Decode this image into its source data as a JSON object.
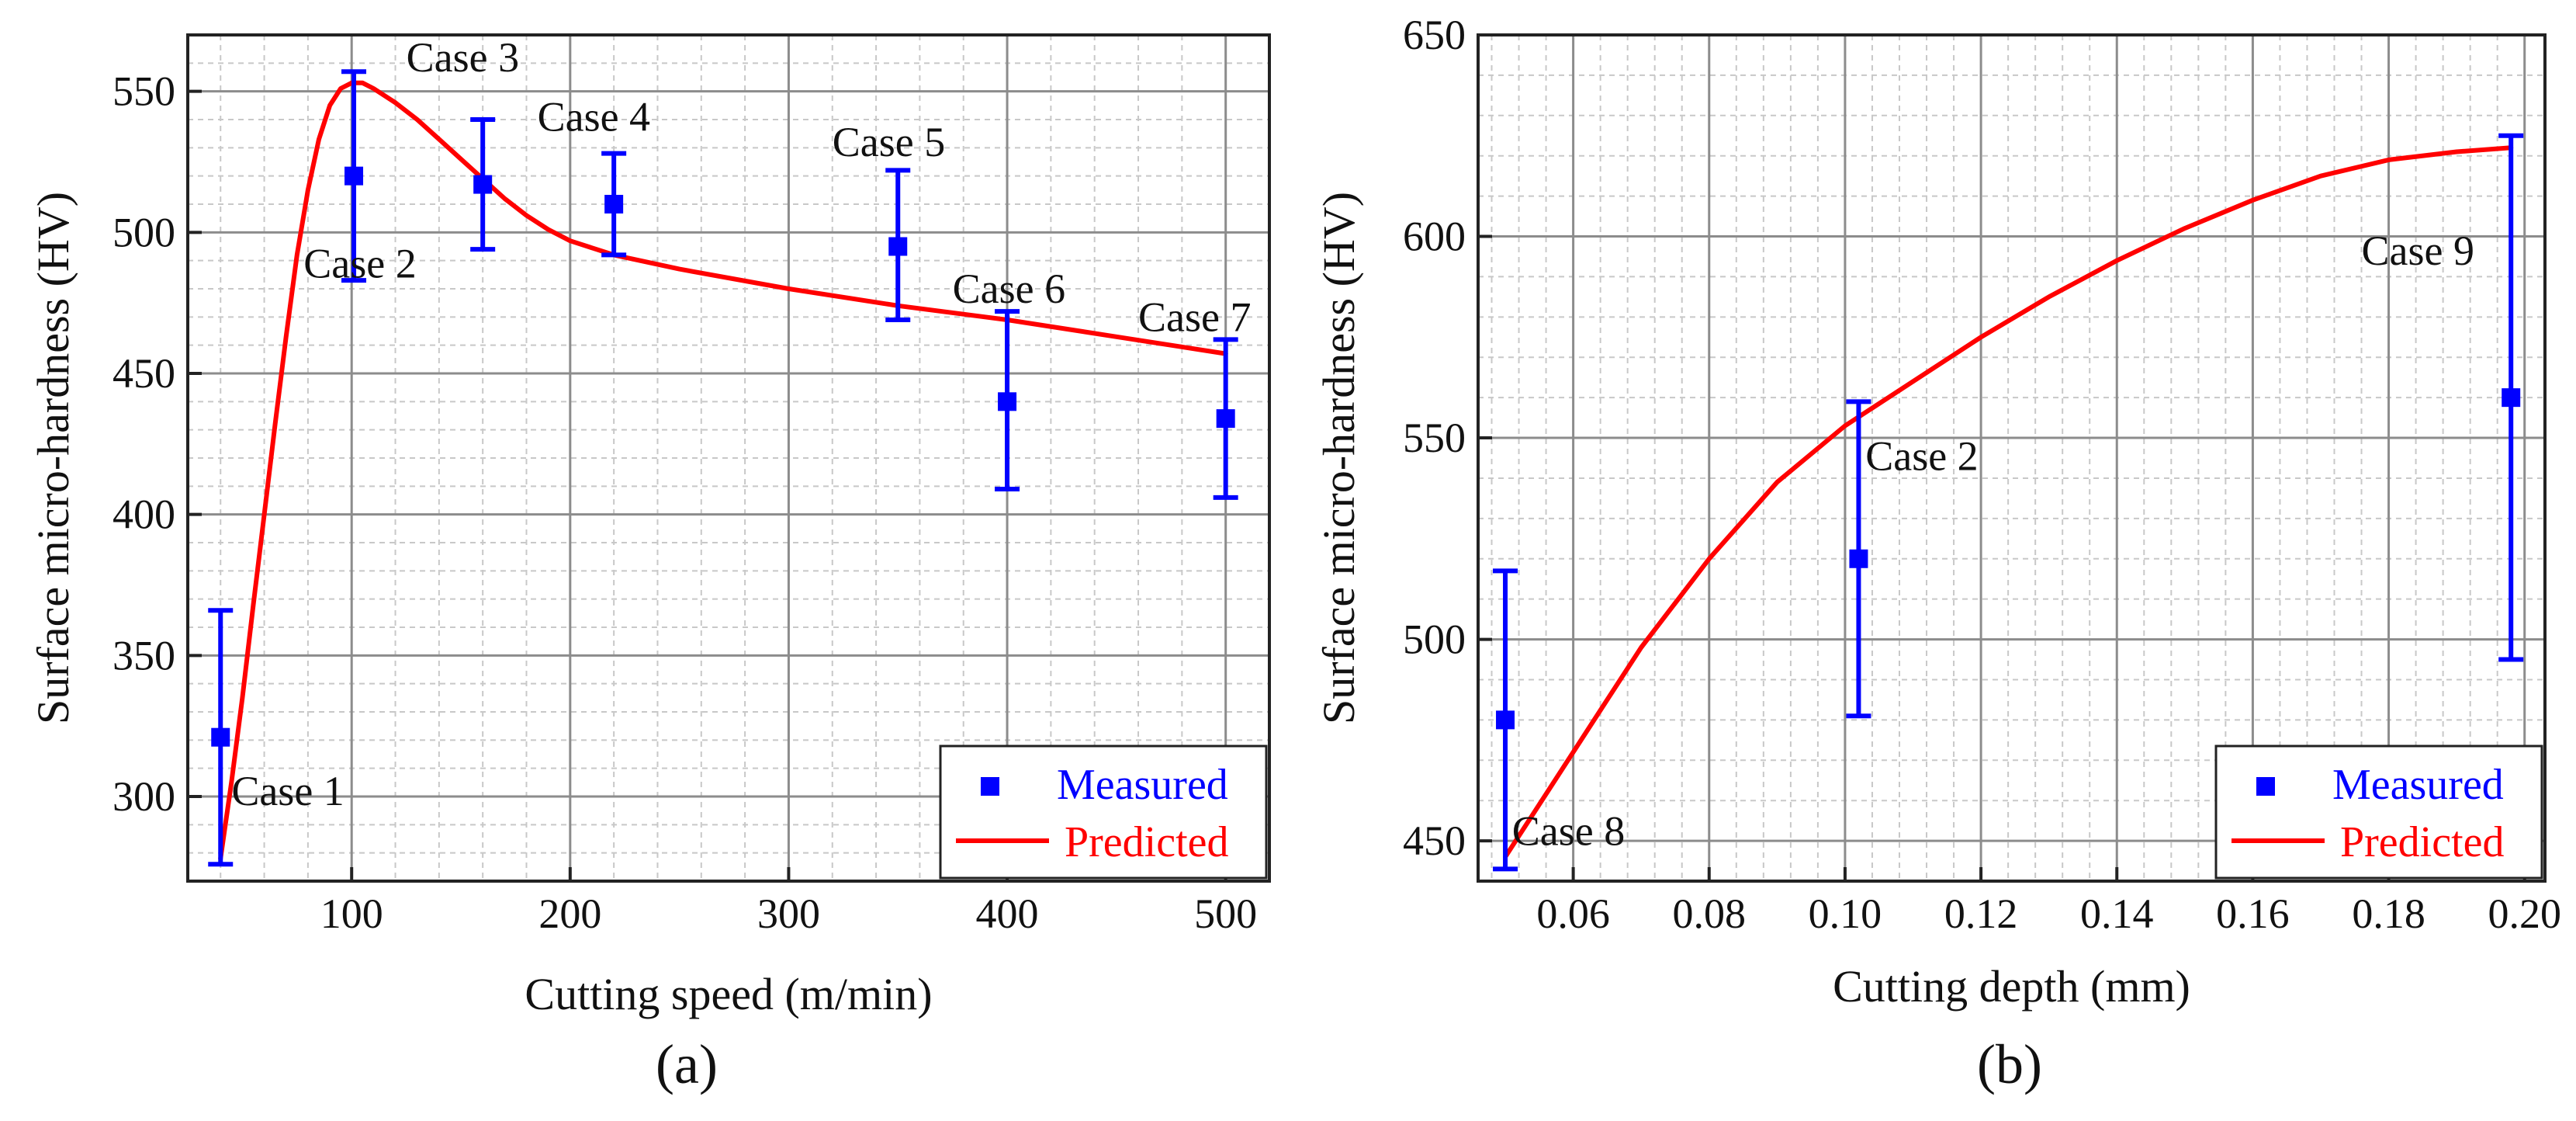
{
  "figure": {
    "panel_labels": [
      "(a)",
      "(b)"
    ]
  },
  "colors": {
    "measured": "#0000ff",
    "predicted": "#ff0000",
    "axis": "#222222",
    "grid_major": "#8c8c8c",
    "grid_minor": "#c8c8c8",
    "text": "#111111"
  },
  "chart_data": [
    {
      "panel": "(a)",
      "type": "line",
      "title": "",
      "xlabel": "Cutting speed (m/min)",
      "ylabel": "Surface micro-hardness (HV)",
      "xlim": [
        25,
        520
      ],
      "ylim": [
        270,
        570
      ],
      "xticks": [
        100,
        200,
        300,
        400,
        500
      ],
      "yticks": [
        300,
        350,
        400,
        450,
        500,
        550
      ],
      "grid": true,
      "legend": {
        "position": "bottom-right",
        "entries": [
          "Measured",
          "Predicted"
        ]
      },
      "series": [
        {
          "name": "Measured",
          "kind": "scatter-errorbar",
          "points": [
            {
              "x": 40,
              "y": 321,
              "err_low": 276,
              "err_high": 366,
              "label": "Case 1"
            },
            {
              "x": 101,
              "y": 520,
              "err_low": 483,
              "err_high": 557,
              "label": "Case 2"
            },
            {
              "x": 160,
              "y": 517,
              "err_low": 494,
              "err_high": 540,
              "label": "Case 3"
            },
            {
              "x": 220,
              "y": 510,
              "err_low": 492,
              "err_high": 528,
              "label": "Case 4"
            },
            {
              "x": 350,
              "y": 495,
              "err_low": 469,
              "err_high": 522,
              "label": "Case 5"
            },
            {
              "x": 400,
              "y": 440,
              "err_low": 409,
              "err_high": 472,
              "label": "Case 6"
            },
            {
              "x": 500,
              "y": 434,
              "err_low": 406,
              "err_high": 462,
              "label": "Case 7"
            }
          ]
        },
        {
          "name": "Predicted",
          "kind": "line",
          "x": [
            40,
            45,
            50,
            55,
            60,
            65,
            70,
            75,
            80,
            85,
            90,
            95,
            100,
            105,
            110,
            120,
            130,
            140,
            150,
            160,
            170,
            180,
            190,
            200,
            220,
            250,
            300,
            350,
            400,
            450,
            500
          ],
          "y": [
            278,
            305,
            335,
            368,
            400,
            432,
            463,
            492,
            515,
            533,
            545,
            551,
            553,
            553,
            551,
            546,
            540,
            533,
            526,
            519,
            512,
            506,
            501,
            497,
            492,
            487,
            480,
            474,
            469,
            463,
            457
          ]
        }
      ],
      "annotations": [
        {
          "text": "Case 1",
          "x": 45,
          "y": 297
        },
        {
          "text": "Case 2",
          "x": 78,
          "y": 484
        },
        {
          "text": "Case 3",
          "x": 125,
          "y": 557
        },
        {
          "text": "Case 4",
          "x": 185,
          "y": 536
        },
        {
          "text": "Case 5",
          "x": 320,
          "y": 527
        },
        {
          "text": "Case 6",
          "x": 375,
          "y": 475
        },
        {
          "text": "Case 7",
          "x": 460,
          "y": 465
        }
      ]
    },
    {
      "panel": "(b)",
      "type": "line",
      "title": "",
      "xlabel": "Cutting depth (mm)",
      "ylabel": "Surface micro-hardness (HV)",
      "xlim": [
        0.046,
        0.203
      ],
      "ylim": [
        440,
        650
      ],
      "xticks": [
        0.06,
        0.08,
        0.1,
        0.12,
        0.14,
        0.16,
        0.18,
        0.2
      ],
      "xtick_labels": [
        "0.06",
        "0.08",
        "0.10",
        "0.12",
        "0.14",
        "0.16",
        "0.18",
        "0.20"
      ],
      "yticks": [
        450,
        500,
        550,
        600,
        650
      ],
      "grid": true,
      "legend": {
        "position": "bottom-right",
        "entries": [
          "Measured",
          "Predicted"
        ]
      },
      "series": [
        {
          "name": "Measured",
          "kind": "scatter-errorbar",
          "points": [
            {
              "x": 0.05,
              "y": 480,
              "err_low": 443,
              "err_high": 517,
              "label": "Case 8"
            },
            {
              "x": 0.102,
              "y": 520,
              "err_low": 481,
              "err_high": 559,
              "label": "Case 2"
            },
            {
              "x": 0.198,
              "y": 560,
              "err_low": 495,
              "err_high": 625,
              "label": "Case 9"
            }
          ]
        },
        {
          "name": "Predicted",
          "kind": "line",
          "x": [
            0.05,
            0.055,
            0.06,
            0.065,
            0.07,
            0.08,
            0.09,
            0.1,
            0.11,
            0.12,
            0.13,
            0.14,
            0.15,
            0.16,
            0.17,
            0.18,
            0.19,
            0.198
          ],
          "y": [
            446,
            459,
            472,
            485,
            498,
            520,
            539,
            553,
            564,
            575,
            585,
            594,
            602,
            609,
            615,
            619,
            621,
            622
          ]
        }
      ],
      "annotations": [
        {
          "text": "Case 8",
          "x": 0.051,
          "y": 449
        },
        {
          "text": "Case 2",
          "x": 0.103,
          "y": 542
        },
        {
          "text": "Case 9",
          "x": 0.176,
          "y": 593
        }
      ]
    }
  ]
}
